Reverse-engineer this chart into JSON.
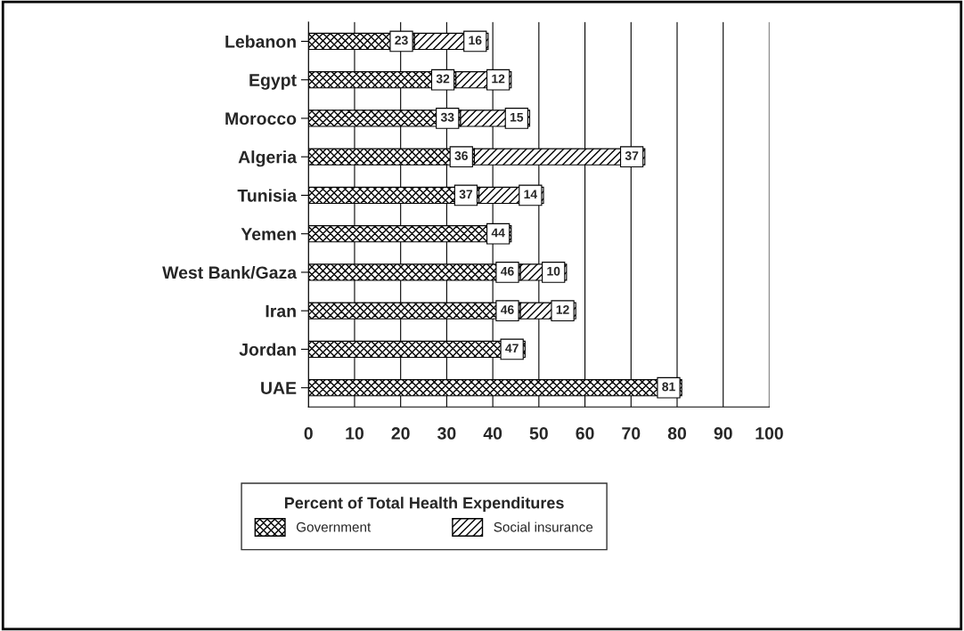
{
  "chart_data": {
    "type": "bar",
    "orientation": "horizontal",
    "stacked": true,
    "categories": [
      "Lebanon",
      "Egypt",
      "Morocco",
      "Algeria",
      "Tunisia",
      "Yemen",
      "West Bank/Gaza",
      "Iran",
      "Jordan",
      "UAE"
    ],
    "series": [
      {
        "name": "Government",
        "color": "#000000",
        "values": [
          23,
          32,
          33,
          36,
          37,
          44,
          46,
          46,
          47,
          81
        ]
      },
      {
        "name": "Social insurance",
        "color": "#000000",
        "values": [
          16,
          12,
          15,
          37,
          14,
          null,
          10,
          12,
          null,
          null
        ]
      }
    ],
    "xlim": [
      0,
      100
    ],
    "xticks": [
      0,
      10,
      20,
      30,
      40,
      50,
      60,
      70,
      80,
      90,
      100
    ],
    "grid": "x",
    "legend": "bottom",
    "legend_title": "Percent of Total Health Expenditures",
    "data_labels": true
  }
}
